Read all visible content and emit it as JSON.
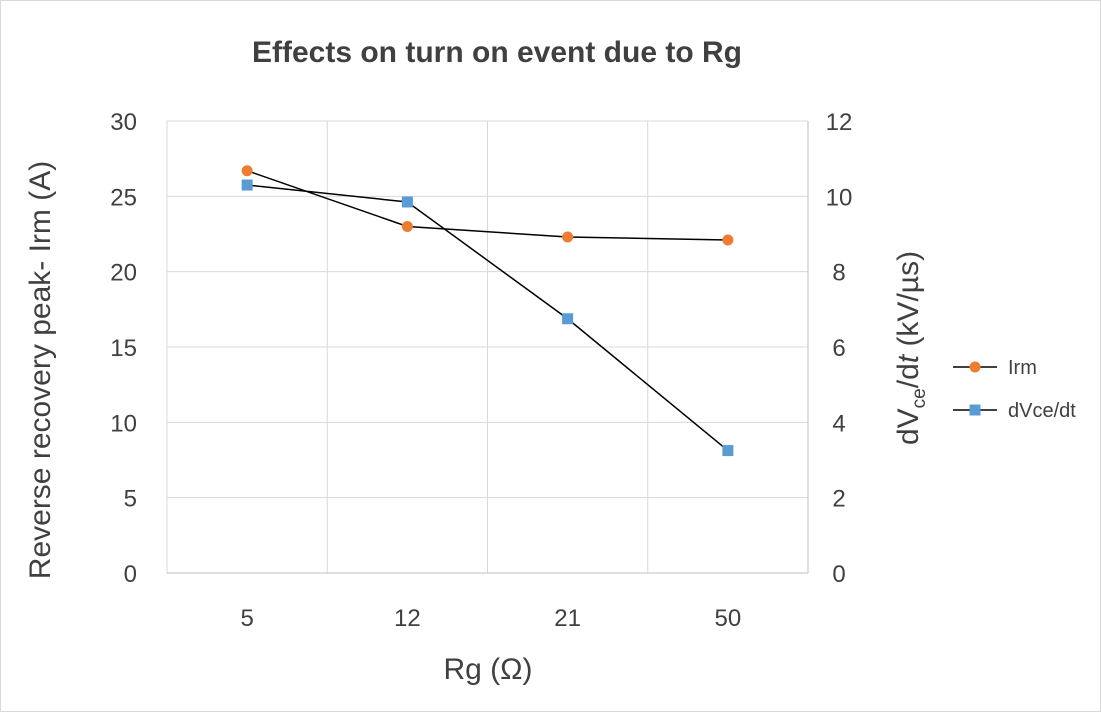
{
  "chart_data": {
    "type": "line",
    "title": "Effects on turn on event due to Rg",
    "xlabel": "Rg (Ω)",
    "ylabel_left": "Reverse recovery peak- Irm (A)",
    "ylabel_right": {
      "prefix": "dV",
      "subscript": "ce",
      "middle": "/d",
      "italic": "t",
      "suffix": " (kV/µs)"
    },
    "categories": [
      "5",
      "12",
      "21",
      "50"
    ],
    "y_left": {
      "min": 0,
      "max": 30,
      "step": 5,
      "ticks": [
        "0",
        "5",
        "10",
        "15",
        "20",
        "25",
        "30"
      ]
    },
    "y_right": {
      "min": 0,
      "max": 12,
      "step": 2,
      "ticks": [
        "0",
        "2",
        "4",
        "6",
        "8",
        "10",
        "12"
      ]
    },
    "grid": true,
    "legend_position": "right",
    "series": [
      {
        "name": "Irm",
        "axis": "left",
        "marker": "circle",
        "color": "#ED7D31",
        "line_color": "#000000",
        "values": [
          26.7,
          23.0,
          22.3,
          22.1
        ]
      },
      {
        "name": "dVce/dt",
        "axis": "right",
        "marker": "square",
        "color": "#5B9BD5",
        "line_color": "#000000",
        "values": [
          10.3,
          9.85,
          6.75,
          3.25
        ]
      }
    ]
  }
}
